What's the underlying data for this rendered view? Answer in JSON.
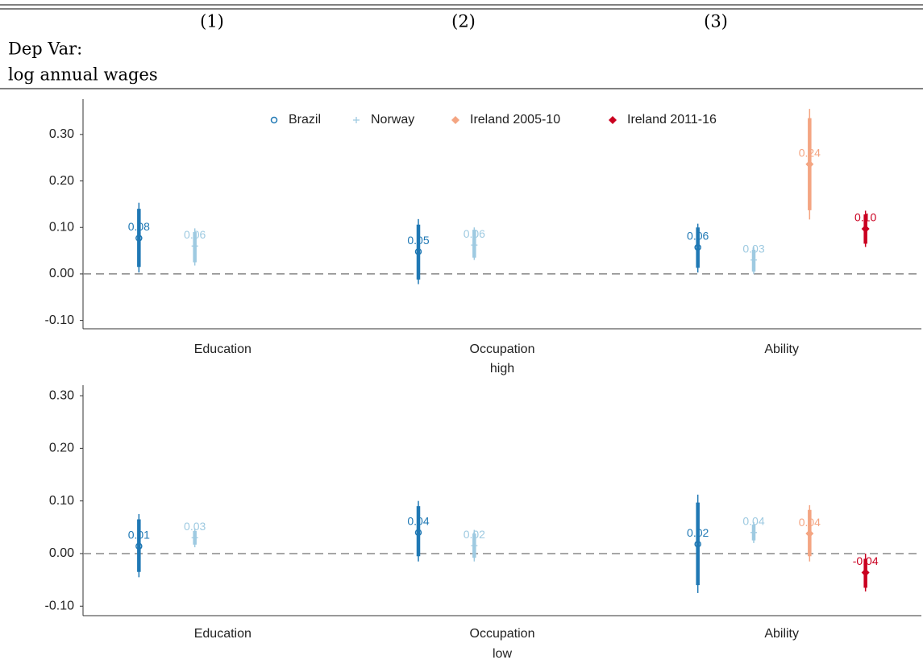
{
  "header": {
    "columns": [
      "(1)",
      "(2)",
      "(3)"
    ],
    "dep_var": [
      "Dep Var:",
      "log annual wages"
    ]
  },
  "chart_data": [
    {
      "type": "errorbar",
      "categories": [
        "Education",
        "Occupation",
        "Ability"
      ],
      "xlabel": "high",
      "ylim": [
        -0.118,
        0.376
      ],
      "yticks": [
        {
          "value": -0.1,
          "label": "-0.10"
        },
        {
          "value": 0,
          "label": "0.00"
        },
        {
          "value": 0.1,
          "label": "0.10"
        },
        {
          "value": 0.2,
          "label": "0.20"
        },
        {
          "value": 0.3,
          "label": "0.30"
        }
      ],
      "reference_line": 0,
      "legend": "top",
      "series": [
        {
          "name": "Brazil",
          "color": "#1f78b4",
          "marker": "circle",
          "values": [
            0.077,
            0.048,
            0.057
          ],
          "value_labels": [
            "0.08",
            "0.05",
            "0.06"
          ],
          "ci_low": [
            0.003,
            -0.022,
            0.003
          ],
          "ci_high": [
            0.153,
            0.118,
            0.108
          ],
          "ci_inner_low": [
            0.015,
            -0.012,
            0.013
          ],
          "ci_inner_high": [
            0.14,
            0.106,
            0.1
          ]
        },
        {
          "name": "Norway",
          "color": "#9ecae1",
          "marker": "plus",
          "values": [
            0.06,
            0.062,
            0.03
          ],
          "value_labels": [
            "0.06",
            "0.06",
            "0.03"
          ],
          "ci_low": [
            0.018,
            0.03,
            0.0
          ],
          "ci_high": [
            0.098,
            0.1,
            0.058
          ],
          "ci_inner_low": [
            0.025,
            0.035,
            0.005
          ],
          "ci_inner_high": [
            0.09,
            0.095,
            0.052
          ]
        },
        {
          "name": "Ireland 2005-10",
          "color": "#f4a582",
          "marker": "diamond",
          "values": [
            null,
            null,
            0.236
          ],
          "value_labels": [
            null,
            null,
            "0.24"
          ],
          "ci_low": [
            null,
            null,
            0.117
          ],
          "ci_high": [
            null,
            null,
            0.355
          ],
          "ci_inner_low": [
            null,
            null,
            0.137
          ],
          "ci_inner_high": [
            null,
            null,
            0.335
          ]
        },
        {
          "name": "Ireland 2011-16",
          "color": "#ca0020",
          "marker": "diamond",
          "values": [
            null,
            null,
            0.097
          ],
          "value_labels": [
            null,
            null,
            "0.10"
          ],
          "ci_low": [
            null,
            null,
            0.058
          ],
          "ci_high": [
            null,
            null,
            0.136
          ],
          "ci_inner_low": [
            null,
            null,
            0.065
          ],
          "ci_inner_high": [
            null,
            null,
            0.128
          ]
        }
      ]
    },
    {
      "type": "errorbar",
      "categories": [
        "Education",
        "Occupation",
        "Ability"
      ],
      "xlabel": "low",
      "ylim": [
        -0.118,
        0.32
      ],
      "yticks": [
        {
          "value": -0.1,
          "label": "-0.10"
        },
        {
          "value": 0,
          "label": "0.00"
        },
        {
          "value": 0.1,
          "label": "0.10"
        },
        {
          "value": 0.2,
          "label": "0.20"
        },
        {
          "value": 0.3,
          "label": "0.30"
        }
      ],
      "reference_line": 0,
      "series": [
        {
          "name": "Brazil",
          "color": "#1f78b4",
          "marker": "circle",
          "values": [
            0.014,
            0.04,
            0.018
          ],
          "value_labels": [
            "0.01",
            "0.04",
            "0.02"
          ],
          "ci_low": [
            -0.045,
            -0.015,
            -0.075
          ],
          "ci_high": [
            0.075,
            0.1,
            0.112
          ],
          "ci_inner_low": [
            -0.035,
            -0.005,
            -0.06
          ],
          "ci_inner_high": [
            0.065,
            0.09,
            0.097
          ]
        },
        {
          "name": "Norway",
          "color": "#9ecae1",
          "marker": "plus",
          "values": [
            0.03,
            0.015,
            0.04
          ],
          "value_labels": [
            "0.03",
            "0.02",
            "0.04"
          ],
          "ci_low": [
            0.012,
            -0.015,
            0.02
          ],
          "ci_high": [
            0.048,
            0.045,
            0.06
          ],
          "ci_inner_low": [
            0.017,
            -0.008,
            0.025
          ],
          "ci_inner_high": [
            0.043,
            0.038,
            0.055
          ]
        },
        {
          "name": "Ireland 2005-10",
          "color": "#f4a582",
          "marker": "diamond",
          "values": [
            null,
            null,
            0.038
          ],
          "value_labels": [
            null,
            null,
            "0.04"
          ],
          "ci_low": [
            null,
            null,
            -0.015
          ],
          "ci_high": [
            null,
            null,
            0.092
          ],
          "ci_inner_low": [
            null,
            null,
            -0.005
          ],
          "ci_inner_high": [
            null,
            null,
            0.083
          ]
        },
        {
          "name": "Ireland 2011-16",
          "color": "#ca0020",
          "marker": "diamond",
          "values": [
            null,
            null,
            -0.036
          ],
          "value_labels": [
            null,
            null,
            "-0.04"
          ],
          "ci_low": [
            null,
            null,
            -0.072
          ],
          "ci_high": [
            null,
            null,
            0.0
          ],
          "ci_inner_low": [
            null,
            null,
            -0.065
          ],
          "ci_inner_high": [
            null,
            null,
            -0.01
          ]
        }
      ]
    }
  ]
}
